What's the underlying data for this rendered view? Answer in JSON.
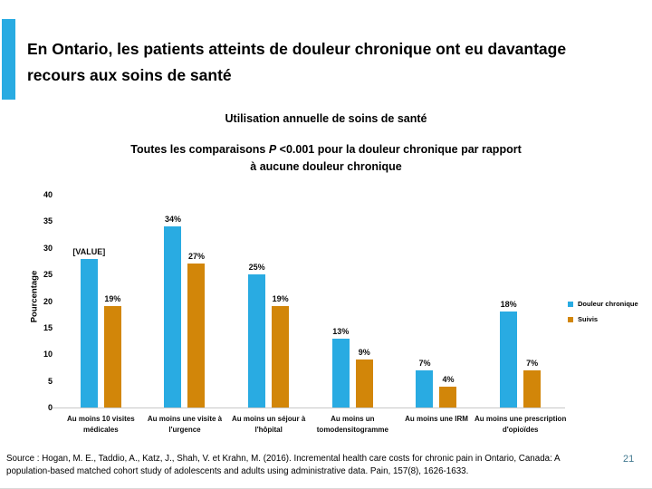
{
  "slide": {
    "title": "En Ontario, les patients atteints de douleur chronique ont eu davantage recours aux soins de santé",
    "accent_color": "#29ABE2",
    "page_number": "21",
    "page_number_color": "#41788F",
    "source_text": "Source : Hogan, M. E., Taddio, A., Katz, J., Shah, V. et Krahn, M. (2016). Incremental health care costs for chronic pain in Ontario, Canada: A population-based matched cohort study of adolescents and adults using administrative data. Pain, 157(8), 1626-1633."
  },
  "chart_data": {
    "type": "bar",
    "title": "Utilisation annuelle de soins de santé",
    "subtitle_prefix": "Toutes les comparaisons ",
    "subtitle_italic": "P",
    "subtitle_rest": " <0.001 pour la douleur chronique par rapport",
    "subtitle_line2": "à aucune douleur chronique",
    "ylabel": "Pourcentage",
    "xlabel": "",
    "ylim": [
      0,
      40
    ],
    "yticks": [
      40,
      35,
      30,
      25,
      20,
      15,
      10,
      5,
      0
    ],
    "grid": false,
    "legend_position": "right",
    "categories": [
      "Au moins 10 visites médicales",
      "Au moins une visite à l'urgence",
      "Au moins un séjour à l'hôpital",
      "Au moins un tomodensitogramme",
      "Au moins une IRM",
      "Au moins une prescription d'opioïdes"
    ],
    "series": [
      {
        "name": "Douleur chronique",
        "color": "#29ABE2",
        "values": [
          28,
          34,
          25,
          13,
          7,
          18
        ],
        "labels": [
          "[VALUE]",
          "34%",
          "25%",
          "13%",
          "7%",
          "18%"
        ]
      },
      {
        "name": "Suivis",
        "color": "#D28609",
        "values": [
          19,
          27,
          19,
          9,
          4,
          7
        ],
        "labels": [
          "19%",
          "27%",
          "19%",
          "9%",
          "4%",
          "7%"
        ]
      }
    ]
  }
}
